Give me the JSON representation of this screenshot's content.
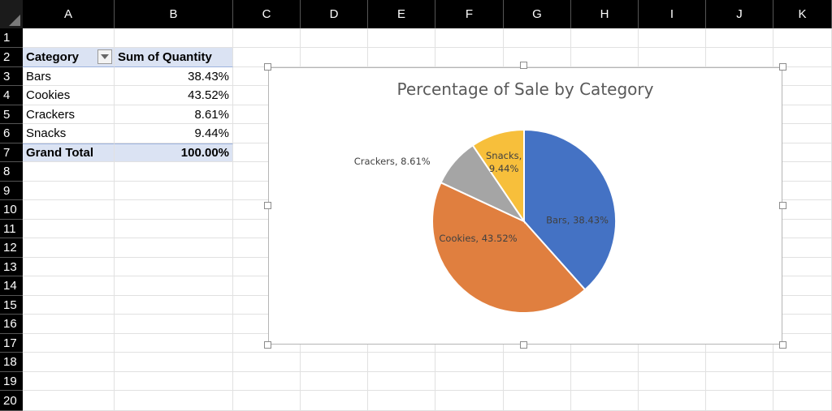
{
  "columns": [
    "A",
    "B",
    "C",
    "D",
    "E",
    "F",
    "G",
    "H",
    "I",
    "J",
    "K"
  ],
  "rows": [
    "1",
    "2",
    "3",
    "4",
    "5",
    "6",
    "7",
    "8",
    "9",
    "10",
    "11",
    "12",
    "13",
    "14",
    "15",
    "16",
    "17",
    "18",
    "19",
    "20"
  ],
  "pivot": {
    "header_category": "Category",
    "header_sum": "Sum of Quantity",
    "items": [
      {
        "category": "Bars",
        "value": "38.43%"
      },
      {
        "category": "Cookies",
        "value": "43.52%"
      },
      {
        "category": "Crackers",
        "value": "8.61%"
      },
      {
        "category": "Snacks",
        "value": "9.44%"
      }
    ],
    "total_label": "Grand Total",
    "total_value": "100.00%"
  },
  "chart_data": {
    "type": "pie",
    "title": "Percentage of Sale by Category",
    "categories": [
      "Bars",
      "Cookies",
      "Crackers",
      "Snacks"
    ],
    "values": [
      38.43,
      43.52,
      8.61,
      9.44
    ],
    "colors": [
      "#4472c4",
      "#e07f3f",
      "#a5a5a5",
      "#f7bf3b"
    ],
    "labels": [
      "Bars, 38.43%",
      "Cookies, 43.52%",
      "Crackers, 8.61%",
      "Snacks, 9.44%"
    ],
    "legend": "none"
  }
}
